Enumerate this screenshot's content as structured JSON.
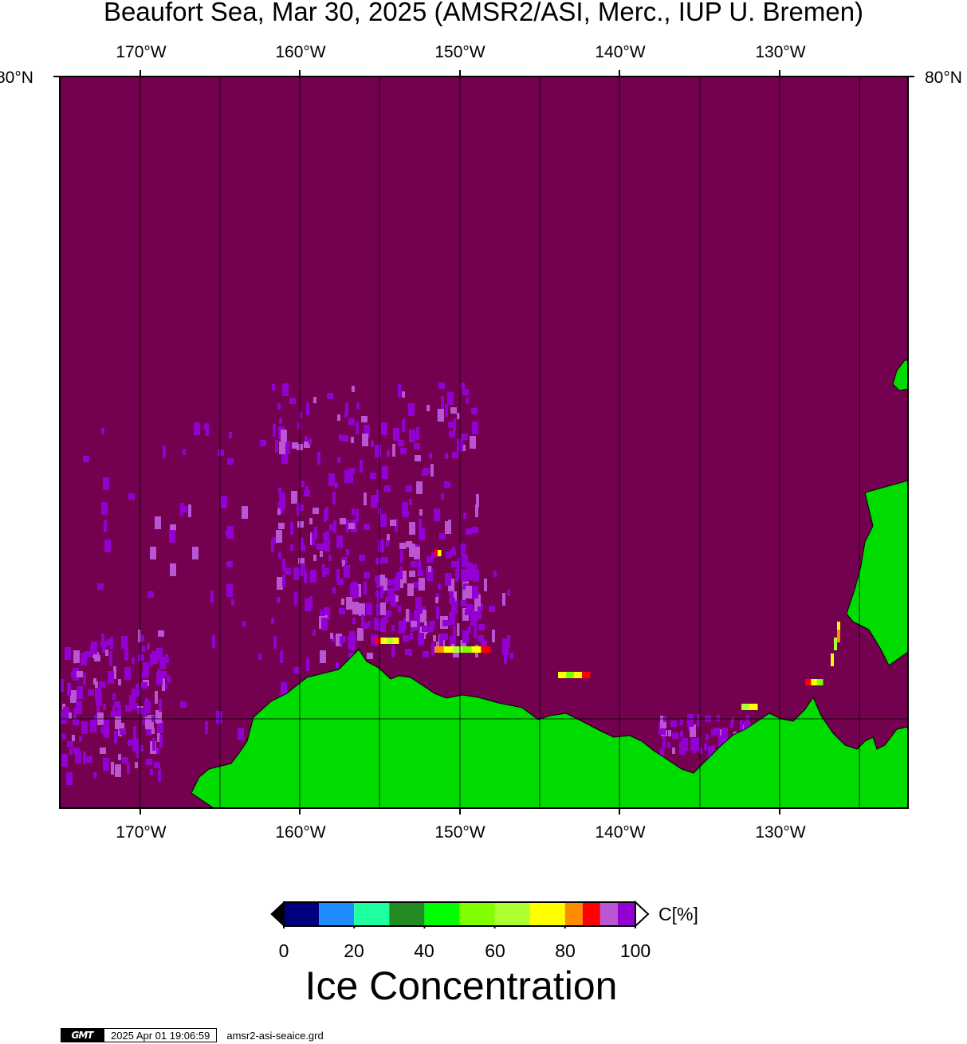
{
  "title": "Beaufort Sea, Mar 30, 2025 (AMSR2/ASI, Merc., IUP U. Bremen)",
  "map": {
    "lon_labels": [
      "170°W",
      "160°W",
      "150°W",
      "140°W",
      "130°W"
    ],
    "lat_label": "80°N",
    "lon_range": [
      -175,
      -122
    ],
    "lat_top": 80,
    "background_color": "#740050",
    "land_color": "#00dc00",
    "gridline_color": "#000000"
  },
  "colorbar": {
    "title": "Ice Concentration",
    "unit": "C[%]",
    "tick_labels": [
      "0",
      "20",
      "40",
      "60",
      "80",
      "100"
    ],
    "range": [
      0,
      100
    ],
    "bins": [
      {
        "from": 0,
        "to": 10,
        "color": "#00007f"
      },
      {
        "from": 10,
        "to": 20,
        "color": "#1e8cff"
      },
      {
        "from": 20,
        "to": 30,
        "color": "#1effa0"
      },
      {
        "from": 30,
        "to": 40,
        "color": "#228b22"
      },
      {
        "from": 40,
        "to": 50,
        "color": "#00ff00"
      },
      {
        "from": 50,
        "to": 60,
        "color": "#7fff00"
      },
      {
        "from": 60,
        "to": 70,
        "color": "#adff2f"
      },
      {
        "from": 70,
        "to": 80,
        "color": "#ffff00"
      },
      {
        "from": 80,
        "to": 85,
        "color": "#ff8c00"
      },
      {
        "from": 85,
        "to": 90,
        "color": "#ff0000"
      },
      {
        "from": 90,
        "to": 95,
        "color": "#ba55d3"
      },
      {
        "from": 95,
        "to": 100,
        "color": "#9400d3"
      }
    ],
    "below_color": "#000000",
    "above_color": "#ffffff"
  },
  "footer": {
    "logo_text": "GMT",
    "timestamp": "2025 Apr 01 19:06:59",
    "filename": "amsr2-asi-seaice.grd"
  }
}
